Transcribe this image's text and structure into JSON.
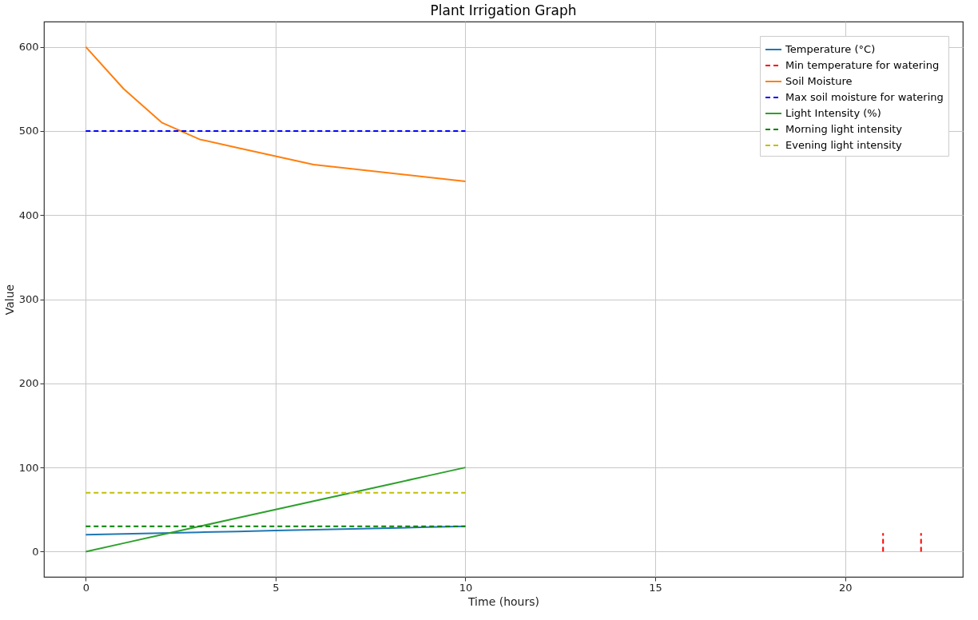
{
  "chart_data": {
    "type": "line",
    "title": "Plant Irrigation Graph",
    "xlabel": "Time (hours)",
    "ylabel": "Value",
    "x": [
      0,
      1,
      2,
      3,
      4,
      5,
      6,
      7,
      8,
      9,
      10
    ],
    "series": [
      {
        "name": "Temperature (°C)",
        "color": "#1f77b4",
        "line_style": "solid",
        "values": [
          20,
          21,
          22,
          23,
          24,
          25,
          26,
          27,
          28,
          29,
          30
        ]
      },
      {
        "name": "Min temperature for watering",
        "color": "#ff0000",
        "line_style": "dashed",
        "x": [
          21,
          21,
          21.5,
          22,
          22
        ],
        "values": [
          0,
          22,
          null,
          0,
          22
        ]
      },
      {
        "name": "Soil Moisture",
        "color": "#ff7f0e",
        "line_style": "solid",
        "values": [
          600,
          550,
          510,
          490,
          480,
          470,
          460,
          455,
          450,
          445,
          440
        ]
      },
      {
        "name": "Max soil moisture for watering",
        "color": "#0000ff",
        "line_style": "dashed",
        "x": [
          0,
          10
        ],
        "values": [
          500,
          500
        ]
      },
      {
        "name": "Light Intensity (%)",
        "color": "#2ca02c",
        "line_style": "solid",
        "values": [
          0,
          10,
          20,
          30,
          40,
          50,
          60,
          70,
          80,
          90,
          100
        ]
      },
      {
        "name": "Morning light intensity",
        "color": "#008000",
        "line_style": "dashed",
        "x": [
          0,
          10
        ],
        "values": [
          30,
          30
        ]
      },
      {
        "name": "Evening light intensity",
        "color": "#bfbf00",
        "line_style": "dashed",
        "x": [
          0,
          10
        ],
        "values": [
          70,
          70
        ]
      }
    ],
    "xlim": [
      -1.1,
      23.1
    ],
    "ylim": [
      -30,
      630
    ],
    "xticks": [
      0,
      5,
      10,
      15,
      20
    ],
    "yticks": [
      0,
      100,
      200,
      300,
      400,
      500,
      600
    ],
    "grid": true,
    "legend": "top right",
    "marker": "none"
  }
}
